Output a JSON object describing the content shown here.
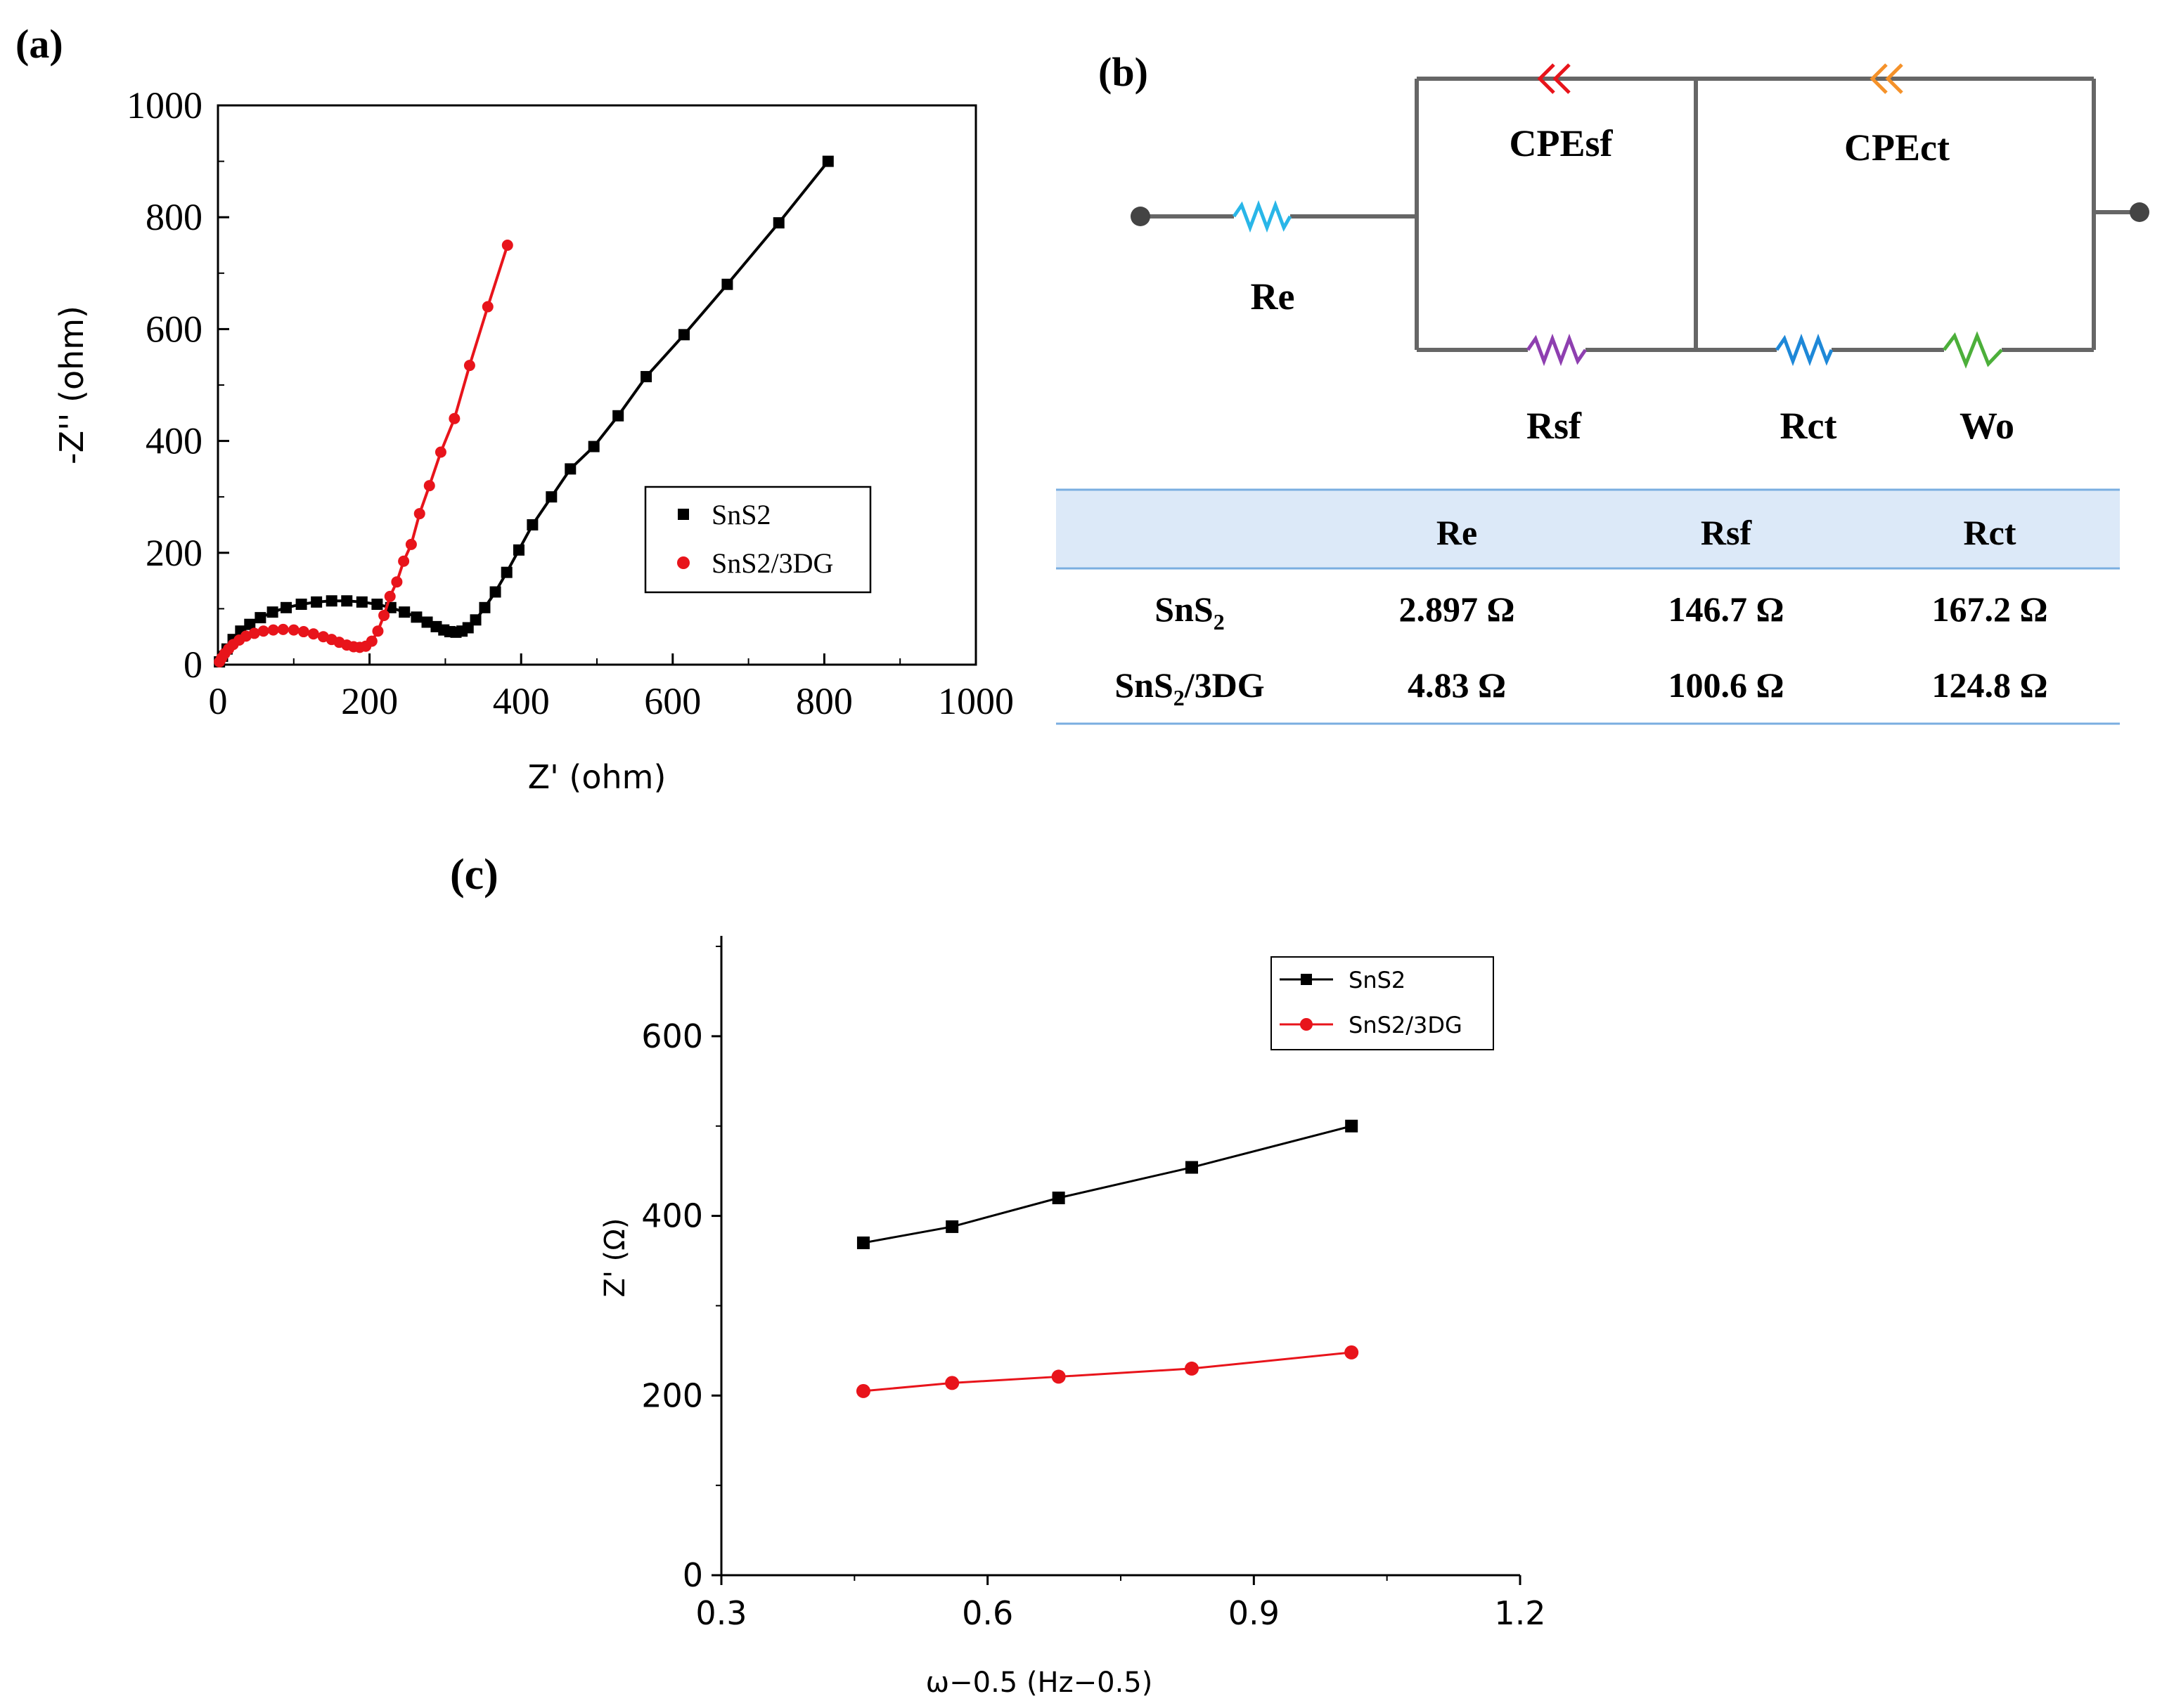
{
  "panel_labels": {
    "a": "(a)",
    "b": "(b)",
    "c": "(c)"
  },
  "chart_data": [
    {
      "id": "a",
      "type": "scatter",
      "title": "",
      "xlabel": "Z' (ohm)",
      "ylabel": "-Z'' (ohm)",
      "xlim": [
        0,
        1000
      ],
      "ylim": [
        0,
        1000
      ],
      "x_ticks": [
        0,
        200,
        400,
        600,
        800,
        1000
      ],
      "y_ticks": [
        0,
        200,
        400,
        600,
        800,
        1000
      ],
      "legend_position": "middle-right",
      "legend_entries": [
        "SnS2",
        "SnS2/3DG"
      ],
      "series": [
        {
          "name": "SnS2",
          "color": "#000000",
          "marker": "square",
          "points": [
            [
              2,
              5
            ],
            [
              6,
              15
            ],
            [
              12,
              28
            ],
            [
              20,
              45
            ],
            [
              30,
              60
            ],
            [
              42,
              72
            ],
            [
              56,
              84
            ],
            [
              72,
              94
            ],
            [
              90,
              102
            ],
            [
              110,
              108
            ],
            [
              130,
              112
            ],
            [
              150,
              114
            ],
            [
              170,
              114
            ],
            [
              190,
              112
            ],
            [
              210,
              108
            ],
            [
              228,
              102
            ],
            [
              246,
              94
            ],
            [
              262,
              85
            ],
            [
              276,
              76
            ],
            [
              288,
              68
            ],
            [
              298,
              62
            ],
            [
              306,
              59
            ],
            [
              314,
              58
            ],
            [
              322,
              60
            ],
            [
              330,
              66
            ],
            [
              340,
              80
            ],
            [
              352,
              102
            ],
            [
              366,
              130
            ],
            [
              381,
              165
            ],
            [
              397,
              205
            ],
            [
              415,
              250
            ],
            [
              440,
              300
            ],
            [
              465,
              350
            ],
            [
              496,
              390
            ],
            [
              528,
              445
            ],
            [
              565,
              515
            ],
            [
              615,
              590
            ],
            [
              672,
              680
            ],
            [
              740,
              790
            ],
            [
              805,
              900
            ]
          ]
        },
        {
          "name": "SnS2/3DG",
          "color": "#e8141b",
          "marker": "circle",
          "points": [
            [
              2,
              5
            ],
            [
              5,
              12
            ],
            [
              9,
              20
            ],
            [
              14,
              28
            ],
            [
              20,
              36
            ],
            [
              28,
              44
            ],
            [
              37,
              51
            ],
            [
              48,
              56
            ],
            [
              60,
              60
            ],
            [
              73,
              62
            ],
            [
              86,
              63
            ],
            [
              100,
              62
            ],
            [
              113,
              59
            ],
            [
              126,
              55
            ],
            [
              139,
              50
            ],
            [
              150,
              45
            ],
            [
              160,
              40
            ],
            [
              170,
              35
            ],
            [
              179,
              32
            ],
            [
              187,
              31
            ],
            [
              195,
              33
            ],
            [
              203,
              42
            ],
            [
              211,
              60
            ],
            [
              219,
              88
            ],
            [
              227,
              122
            ],
            [
              236,
              148
            ],
            [
              245,
              185
            ],
            [
              255,
              215
            ],
            [
              266,
              270
            ],
            [
              279,
              320
            ],
            [
              294,
              380
            ],
            [
              312,
              440
            ],
            [
              332,
              535
            ],
            [
              356,
              640
            ],
            [
              382,
              750
            ]
          ]
        }
      ]
    },
    {
      "id": "b",
      "type": "table",
      "circuit_labels": {
        "re": "Re",
        "cpesf": "CPEsf",
        "cpect": "CPEct",
        "rsf": "Rsf",
        "rct": "Rct",
        "wo": "Wo"
      },
      "circuit_colors": {
        "re": "#29b6e8",
        "cpesf": "#e8141b",
        "cpect": "#f5922a",
        "rsf": "#8e3fb0",
        "rct": "#1e88d8",
        "wo": "#4caf3a"
      },
      "columns": [
        "",
        "Re",
        "Rsf",
        "Rct"
      ],
      "rows": [
        {
          "sample": "SnS",
          "sub": "2",
          "suffix": "",
          "re": "2.897 Ω",
          "rsf": "146.7 Ω",
          "rct": "167.2 Ω"
        },
        {
          "sample": "SnS",
          "sub": "2",
          "suffix": "/3DG",
          "re": "4.83 Ω",
          "rsf": "100.6 Ω",
          "rct": "124.8 Ω"
        }
      ],
      "header_bg": "#dce9f8",
      "rule_color": "#7aaee0"
    },
    {
      "id": "c",
      "type": "line",
      "title": "",
      "xlabel": "ω−0.5 (Hz−0.5)",
      "ylabel": "Z' (Ω)",
      "xlim": [
        0.3,
        1.2
      ],
      "ylim": [
        0,
        700
      ],
      "x_ticks": [
        "0.3",
        "0.6",
        "0.9",
        "1.2"
      ],
      "y_ticks": [
        "0",
        "200",
        "400",
        "600"
      ],
      "legend_position": "top-right",
      "series": [
        {
          "name": "SnS2",
          "color": "#000000",
          "marker": "square",
          "x": [
            0.46,
            0.56,
            0.68,
            0.83,
            1.01
          ],
          "y": [
            370,
            388,
            420,
            454,
            500
          ]
        },
        {
          "name": "SnS2/3DG",
          "color": "#e8141b",
          "marker": "circle",
          "x": [
            0.46,
            0.56,
            0.68,
            0.83,
            1.01
          ],
          "y": [
            205,
            214,
            221,
            230,
            248
          ]
        }
      ]
    }
  ]
}
